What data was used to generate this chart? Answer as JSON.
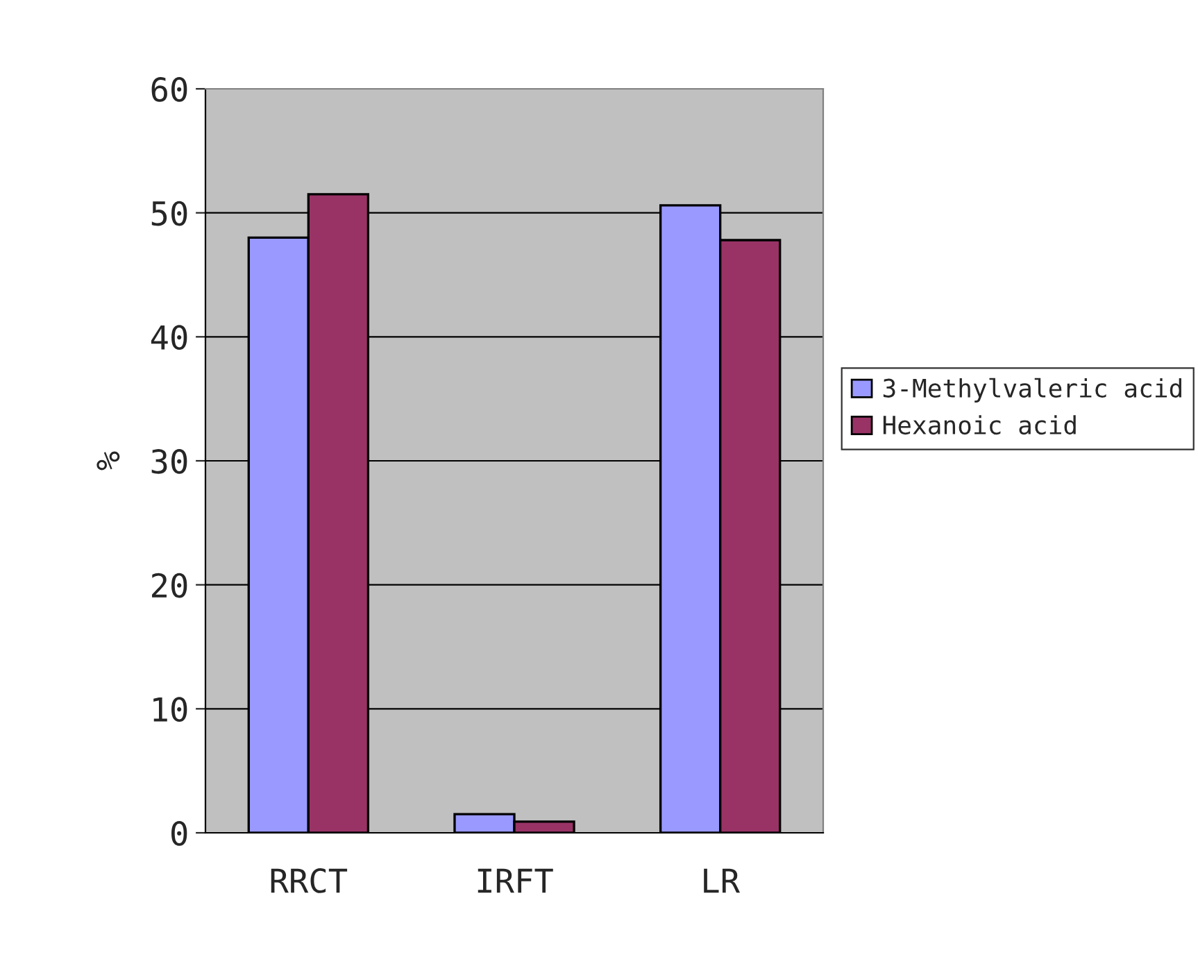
{
  "chart_data": {
    "type": "bar",
    "ylabel": "%",
    "categories": [
      "RRCT",
      "IRFT",
      "LR"
    ],
    "series": [
      {
        "name": "3-Methylvaleric acid",
        "color": "#9999ff",
        "values": [
          48.0,
          1.5,
          50.6
        ]
      },
      {
        "name": "Hexanoic acid",
        "color": "#993366",
        "values": [
          51.5,
          0.9,
          47.8
        ]
      }
    ],
    "ylim": [
      0,
      60
    ],
    "yticks": [
      0,
      10,
      20,
      30,
      40,
      50,
      60
    ],
    "grid": "y",
    "legend": "right"
  }
}
